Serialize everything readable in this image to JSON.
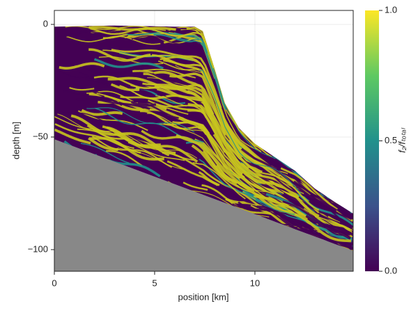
{
  "chart_data": {
    "type": "heatmap",
    "xlabel": "position [km]",
    "ylabel": "depth [m]",
    "colorbar_label": "f₂/fₜₒₜₐₗ",
    "xlim": [
      0,
      14.9
    ],
    "ylim": [
      -109.6,
      6.2
    ],
    "xticks": [
      0,
      5,
      10
    ],
    "yticks": [
      0,
      -50,
      -100
    ],
    "clim": [
      0,
      1
    ],
    "cticks": [
      {
        "value": 0,
        "label": "0.0"
      },
      {
        "value": 0.5,
        "label": "0.5"
      },
      {
        "value": 1,
        "label": "1.0"
      }
    ],
    "colormap": [
      "#440154",
      "#3b528b",
      "#21918c",
      "#5ec962",
      "#fde725"
    ],
    "basement_color": "#888888",
    "grid": true,
    "surface": {
      "x": [
        0,
        3,
        6,
        7,
        7.4,
        8,
        8.5,
        9.2,
        10,
        11,
        12,
        13,
        14,
        14.9
      ],
      "y": [
        -1,
        -0.5,
        -1,
        -1,
        -3,
        -20,
        -35,
        -46,
        -53,
        -59,
        -65,
        -73,
        -79,
        -84
      ]
    },
    "basement": {
      "x": [
        0,
        14.9
      ],
      "y": [
        -51,
        -100.5
      ]
    }
  }
}
